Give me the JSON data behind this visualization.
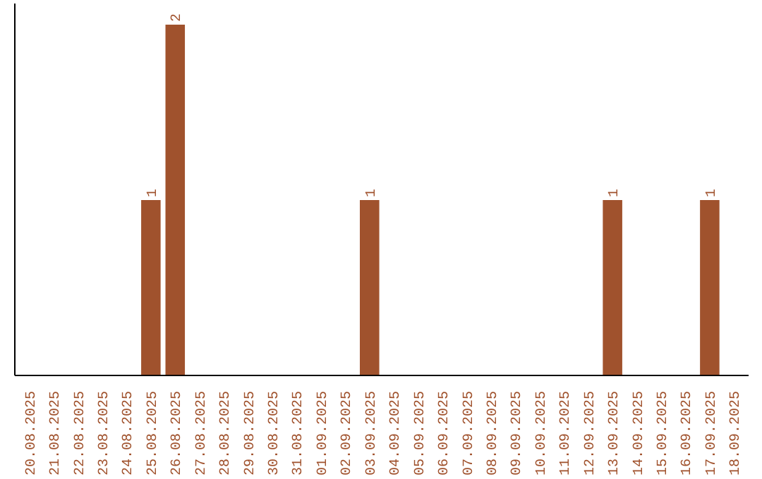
{
  "chart_data": {
    "type": "bar",
    "categories": [
      "20.08.2025",
      "21.08.2025",
      "22.08.2025",
      "23.08.2025",
      "24.08.2025",
      "25.08.2025",
      "26.08.2025",
      "27.08.2025",
      "28.08.2025",
      "29.08.2025",
      "30.08.2025",
      "31.08.2025",
      "01.09.2025",
      "02.09.2025",
      "03.09.2025",
      "04.09.2025",
      "05.09.2025",
      "06.09.2025",
      "07.09.2025",
      "08.09.2025",
      "09.09.2025",
      "10.09.2025",
      "11.09.2025",
      "12.09.2025",
      "13.09.2025",
      "14.09.2025",
      "15.09.2025",
      "16.09.2025",
      "17.09.2025",
      "18.09.2025"
    ],
    "values": [
      0,
      0,
      0,
      0,
      0,
      1,
      2,
      0,
      0,
      0,
      0,
      0,
      0,
      0,
      1,
      0,
      0,
      0,
      0,
      0,
      0,
      0,
      0,
      0,
      1,
      0,
      0,
      0,
      1,
      0
    ],
    "value_labels": [
      null,
      null,
      null,
      null,
      null,
      "1",
      "2",
      null,
      null,
      null,
      null,
      null,
      null,
      null,
      "1",
      null,
      null,
      null,
      null,
      null,
      null,
      null,
      null,
      null,
      "1",
      null,
      null,
      null,
      "1",
      null
    ],
    "color": "#a0522d",
    "tick_labels": "x",
    "grid": false
  }
}
